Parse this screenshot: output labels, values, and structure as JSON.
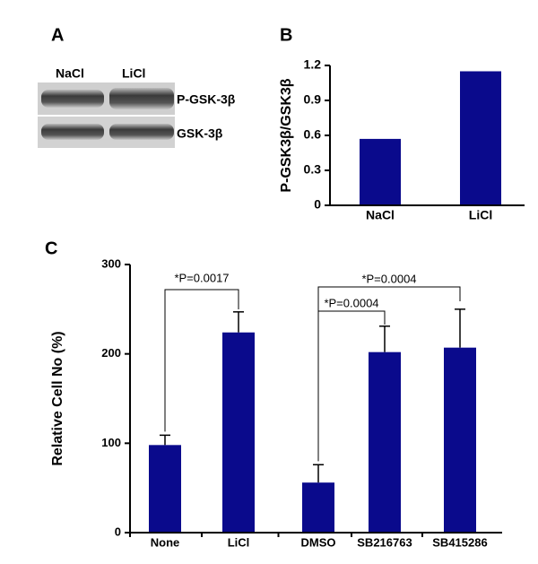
{
  "panel_a": {
    "label": "A",
    "lanes": [
      "NaCl",
      "LiCl"
    ],
    "bands": [
      "P-GSK-3β",
      "GSK-3β"
    ]
  },
  "chart_data": [
    {
      "type": "bar",
      "panel": "B",
      "y_label": "P-GSK3β/GSK3β",
      "categories": [
        "NaCl",
        "LiCl"
      ],
      "values": [
        0.57,
        1.15
      ],
      "color": "#0a0a8c",
      "ylim": [
        0,
        1.2
      ],
      "yticks": [
        0,
        0.3,
        0.6,
        0.9,
        1.2
      ]
    },
    {
      "type": "bar",
      "panel": "C",
      "y_label": "Relative Cell No (%)",
      "categories": [
        "None",
        "LiCl",
        "DMSO",
        "SB216763",
        "SB415286"
      ],
      "values": [
        98,
        224,
        56,
        202,
        207
      ],
      "errors": [
        11,
        23,
        20,
        29,
        43
      ],
      "color": "#0a0a8c",
      "ylim": [
        0,
        300
      ],
      "yticks": [
        0,
        100,
        200,
        300
      ],
      "annotations": [
        "*P=0.0017",
        "*P=0.0004",
        "*P=0.0004"
      ]
    }
  ]
}
